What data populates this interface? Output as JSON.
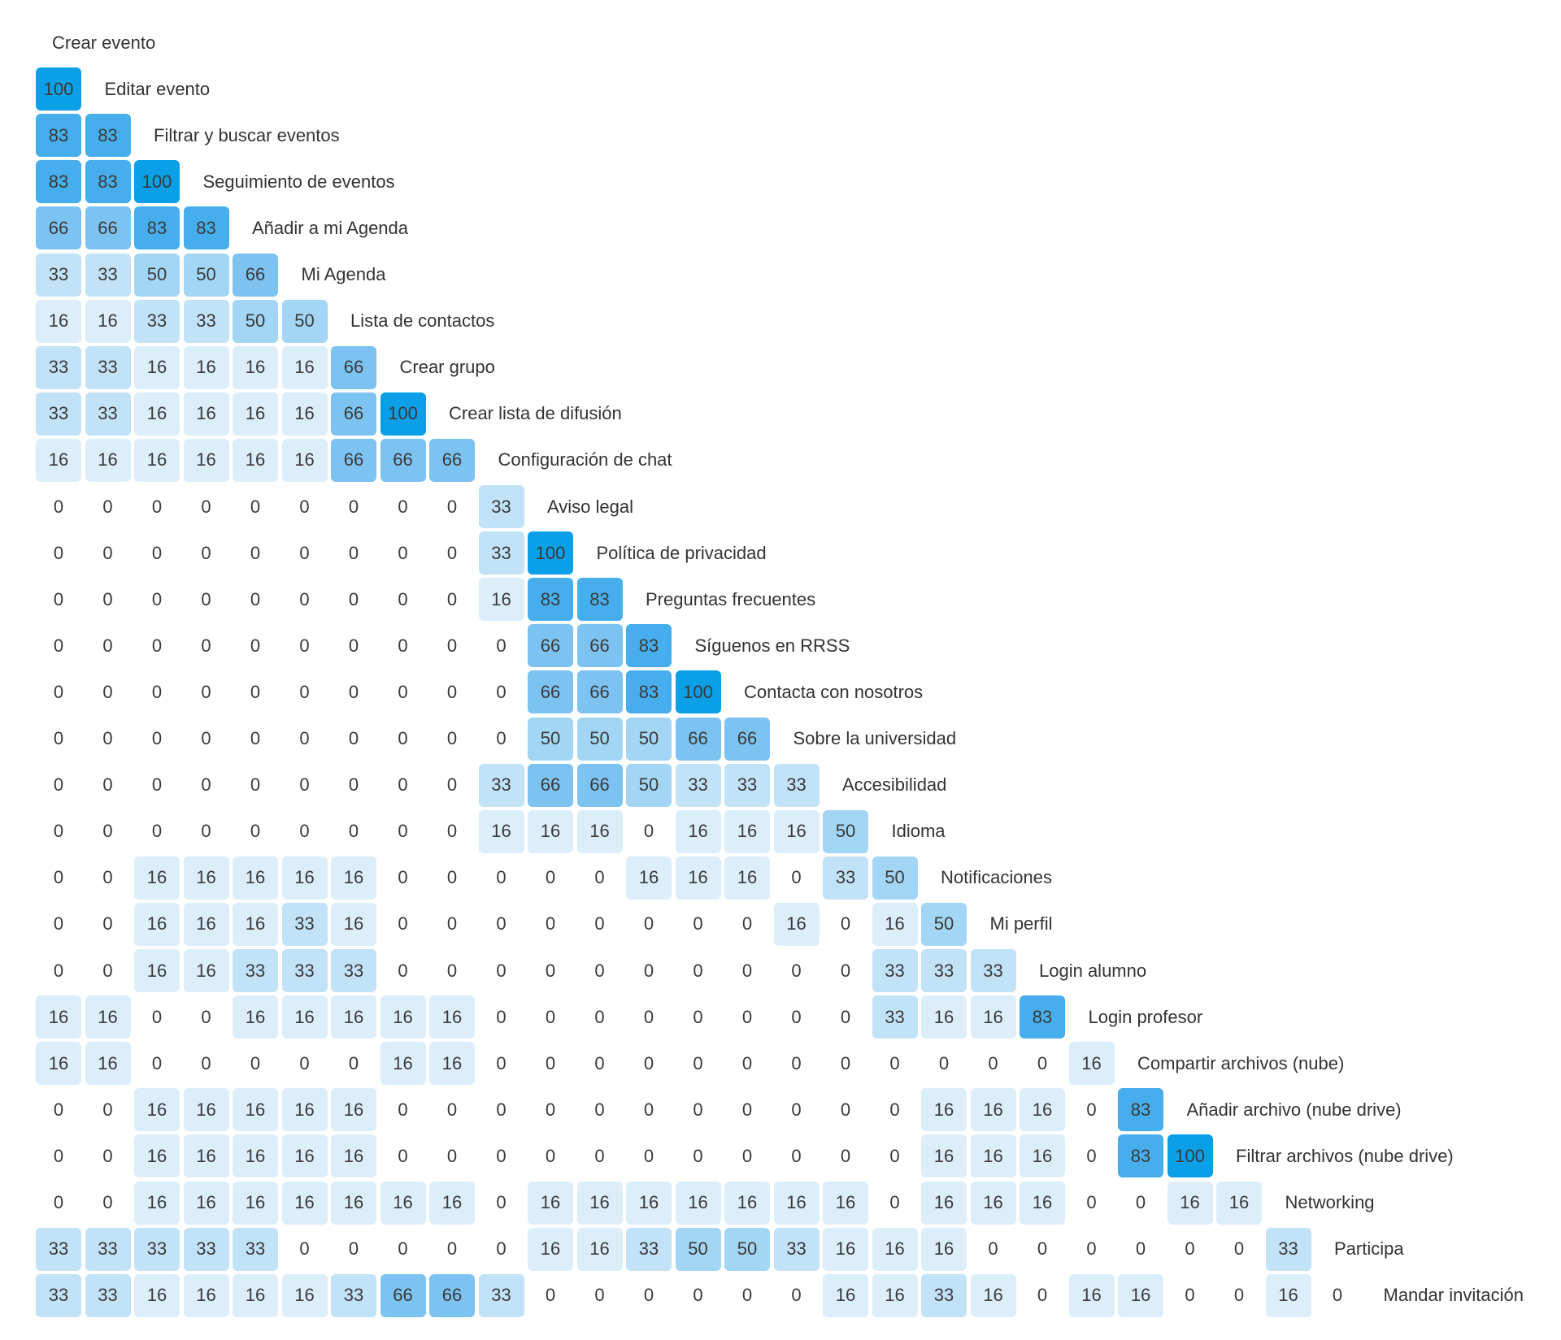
{
  "chart_data": {
    "type": "heatmap",
    "colors": {
      "100": "#0a9fe6",
      "83": "#46aeec",
      "66": "#7cc3f1",
      "50": "#a3d5f5",
      "33": "#c2e2f8",
      "16": "#ddeefb",
      "0": "#ffffff"
    },
    "labels": [
      "Crear evento",
      "Editar evento",
      "Filtrar y buscar eventos",
      "Seguimiento de eventos",
      "Añadir a mi Agenda",
      "Mi Agenda",
      "Lista de contactos",
      "Crear grupo",
      "Crear lista de difusión",
      "Configuración de chat",
      "Aviso legal",
      "Política de privacidad",
      "Preguntas frecuentes",
      "Síguenos en RRSS",
      "Contacta con nosotros",
      "Sobre la universidad",
      "Accesibilidad",
      "Idioma",
      "Notificaciones",
      "Mi perfil",
      "Login alumno",
      "Login profesor",
      "Compartir archivos (nube)",
      "Añadir archivo (nube drive)",
      "Filtrar archivos (nube drive)",
      "Networking",
      "Participa",
      "Mandar invitación"
    ],
    "rows": [
      [],
      [
        100
      ],
      [
        83,
        83
      ],
      [
        83,
        83,
        100
      ],
      [
        66,
        66,
        83,
        83
      ],
      [
        33,
        33,
        50,
        50,
        66
      ],
      [
        16,
        16,
        33,
        33,
        50,
        50
      ],
      [
        33,
        33,
        16,
        16,
        16,
        16,
        66
      ],
      [
        33,
        33,
        16,
        16,
        16,
        16,
        66,
        100
      ],
      [
        16,
        16,
        16,
        16,
        16,
        16,
        66,
        66,
        66
      ],
      [
        0,
        0,
        0,
        0,
        0,
        0,
        0,
        0,
        0,
        33
      ],
      [
        0,
        0,
        0,
        0,
        0,
        0,
        0,
        0,
        0,
        33,
        100
      ],
      [
        0,
        0,
        0,
        0,
        0,
        0,
        0,
        0,
        0,
        16,
        83,
        83
      ],
      [
        0,
        0,
        0,
        0,
        0,
        0,
        0,
        0,
        0,
        0,
        66,
        66,
        83
      ],
      [
        0,
        0,
        0,
        0,
        0,
        0,
        0,
        0,
        0,
        0,
        66,
        66,
        83,
        100
      ],
      [
        0,
        0,
        0,
        0,
        0,
        0,
        0,
        0,
        0,
        0,
        50,
        50,
        50,
        66,
        66
      ],
      [
        0,
        0,
        0,
        0,
        0,
        0,
        0,
        0,
        0,
        33,
        66,
        66,
        50,
        33,
        33,
        33
      ],
      [
        0,
        0,
        0,
        0,
        0,
        0,
        0,
        0,
        0,
        16,
        16,
        16,
        0,
        16,
        16,
        16,
        50
      ],
      [
        0,
        0,
        16,
        16,
        16,
        16,
        16,
        0,
        0,
        0,
        0,
        0,
        16,
        16,
        16,
        0,
        33,
        50
      ],
      [
        0,
        0,
        16,
        16,
        16,
        33,
        16,
        0,
        0,
        0,
        0,
        0,
        0,
        0,
        0,
        16,
        0,
        16,
        50
      ],
      [
        0,
        0,
        16,
        16,
        33,
        33,
        33,
        0,
        0,
        0,
        0,
        0,
        0,
        0,
        0,
        0,
        0,
        33,
        33,
        33
      ],
      [
        16,
        16,
        0,
        0,
        16,
        16,
        16,
        16,
        16,
        0,
        0,
        0,
        0,
        0,
        0,
        0,
        0,
        33,
        16,
        16,
        83
      ],
      [
        16,
        16,
        0,
        0,
        0,
        0,
        0,
        16,
        16,
        0,
        0,
        0,
        0,
        0,
        0,
        0,
        0,
        0,
        0,
        0,
        0,
        16
      ],
      [
        0,
        0,
        16,
        16,
        16,
        16,
        16,
        0,
        0,
        0,
        0,
        0,
        0,
        0,
        0,
        0,
        0,
        0,
        16,
        16,
        16,
        0,
        83
      ],
      [
        0,
        0,
        16,
        16,
        16,
        16,
        16,
        0,
        0,
        0,
        0,
        0,
        0,
        0,
        0,
        0,
        0,
        0,
        16,
        16,
        16,
        0,
        83,
        100
      ],
      [
        0,
        0,
        16,
        16,
        16,
        16,
        16,
        16,
        16,
        0,
        16,
        16,
        16,
        16,
        16,
        16,
        16,
        0,
        16,
        16,
        16,
        0,
        0,
        16,
        16
      ],
      [
        33,
        33,
        33,
        33,
        33,
        0,
        0,
        0,
        0,
        0,
        16,
        16,
        33,
        50,
        50,
        33,
        16,
        16,
        16,
        0,
        0,
        0,
        0,
        0,
        0,
        33
      ],
      [
        33,
        33,
        16,
        16,
        16,
        16,
        33,
        66,
        66,
        33,
        0,
        0,
        0,
        0,
        0,
        0,
        16,
        16,
        33,
        16,
        0,
        16,
        16,
        0,
        0,
        16,
        0
      ]
    ]
  }
}
